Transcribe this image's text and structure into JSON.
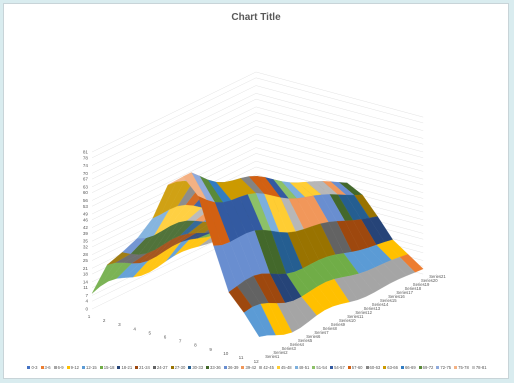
{
  "chart_data": {
    "type": "surface",
    "title": "Chart Title",
    "categories": [
      "1",
      "2",
      "3",
      "4",
      "5",
      "6",
      "7",
      "8",
      "9",
      "10",
      "11",
      "12"
    ],
    "series_names": [
      "Series1",
      "Series2",
      "Series3",
      "Series4",
      "Series5",
      "Series6",
      "Series7",
      "Series8",
      "Series9",
      "Series10",
      "Series11",
      "Series12",
      "Series13",
      "Series14",
      "Series15",
      "Series16",
      "Series17",
      "Series18",
      "Series19",
      "Series20",
      "Series21"
    ],
    "z_ticks": [
      "0",
      "4",
      "7",
      "11",
      "14",
      "18",
      "21",
      "25",
      "28",
      "32",
      "35",
      "39",
      "42",
      "46",
      "49",
      "53",
      "56",
      "60",
      "63",
      "67",
      "70",
      "74",
      "78",
      "81"
    ],
    "z_range": [
      0,
      81
    ],
    "surface_profile": [
      8,
      22,
      32,
      45,
      58,
      74,
      81,
      72,
      52,
      30,
      18,
      6
    ],
    "legend_entries": [
      "0-3",
      "3-6",
      "6-9",
      "9-12",
      "12-15",
      "15-18",
      "18-21",
      "21-24",
      "24-27",
      "27-30",
      "30-33",
      "33-36",
      "36-39",
      "39-42",
      "42-45",
      "45-48",
      "48-51",
      "51-54",
      "54-57",
      "57-60",
      "60-63",
      "63-66",
      "66-69",
      "69-72",
      "72-75",
      "75-78",
      "78-81"
    ],
    "band_colors": [
      "#4472c4",
      "#ed7d31",
      "#a5a5a5",
      "#ffc000",
      "#5b9bd5",
      "#70ad47",
      "#264478",
      "#9e480e",
      "#636363",
      "#997300",
      "#255e91",
      "#43682b",
      "#698ed0",
      "#f1975a",
      "#b7b7b7",
      "#ffcd33",
      "#7cafdd",
      "#8cc168",
      "#335aa1",
      "#d26012",
      "#848484",
      "#cc9a00",
      "#327dc2",
      "#5a8a39",
      "#8faadc",
      "#f4b183",
      "#c9c9c9"
    ]
  }
}
